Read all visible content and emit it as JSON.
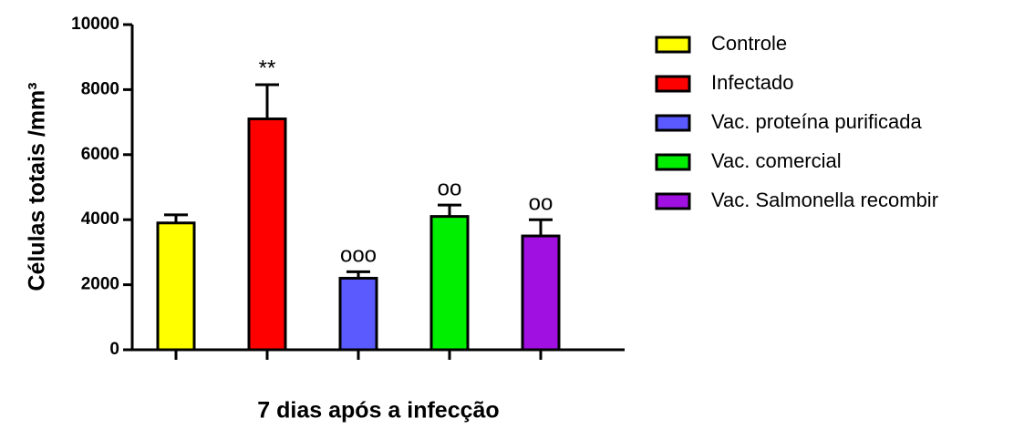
{
  "chart_data": {
    "type": "bar",
    "x_label": "7 dias após a infecção",
    "y_label": "Células totais /mm³",
    "categories": [
      "Controle",
      "Infectado",
      "Vac. proteína purificada",
      "Vac. comercial",
      "Vac. Salmonella recombir"
    ],
    "values": [
      3900,
      7100,
      2200,
      4100,
      3500
    ],
    "errors": [
      250,
      1050,
      200,
      350,
      500
    ],
    "colors": [
      "#ffff00",
      "#ff0000",
      "#5a5aff",
      "#00ee00",
      "#a010e0"
    ],
    "annotations": [
      null,
      "**",
      "ooo",
      "oo",
      "oo"
    ],
    "ylim": [
      0,
      10000
    ],
    "yticks": [
      0,
      2000,
      4000,
      6000,
      8000,
      10000
    ],
    "legend": "right"
  }
}
